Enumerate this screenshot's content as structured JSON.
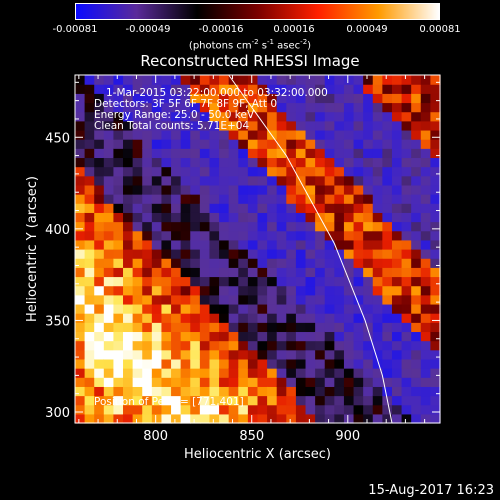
{
  "colorbar": {
    "ticks": [
      "-0.00081",
      "-0.00049",
      "-0.00016",
      "0.00016",
      "0.00049",
      "0.00081"
    ],
    "units_parts": [
      "(photons cm",
      "-2",
      " s",
      "-1",
      " asec",
      "-2",
      ")"
    ],
    "colors": [
      "#0a0aff",
      "#5a2a9a",
      "#000000",
      "#7a0000",
      "#ff2000",
      "#ff9a00",
      "#ffffff"
    ]
  },
  "title": "Reconstructed RHESSI Image",
  "info": {
    "line1": "1-Mar-2015 03:22:00.000 to 03:32:00.000",
    "line2": "Detectors: 3F 5F 6F 7F 8F 9F, Att 0",
    "line3": "Energy Range: 25.0 - 50.0 keV",
    "line4": "Clean    Total counts: 5.71E+04",
    "peak": "Position of Peak = [771,401]"
  },
  "footer": {
    "timestamp": "15-Aug-2017 16:23"
  },
  "chart_data": {
    "type": "heatmap",
    "title": "Reconstructed RHESSI Image",
    "xlabel": "Heliocentric X (arcsec)",
    "ylabel": "Heliocentric Y (arcsec)",
    "xlim": [
      758,
      948
    ],
    "ylim": [
      294,
      484
    ],
    "x_ticks": [
      "800",
      "850",
      "900"
    ],
    "x_tick_values": [
      800,
      850,
      900
    ],
    "y_ticks": [
      "300",
      "350",
      "400",
      "450"
    ],
    "y_tick_values": [
      300,
      350,
      400,
      450
    ],
    "colorbar_range": [
      -0.00081,
      0.00081
    ],
    "peak_position": [
      771,
      401
    ],
    "limb_curve": [
      [
        838,
        484
      ],
      [
        868,
        440
      ],
      [
        893,
        392
      ],
      [
        909,
        350
      ],
      [
        918,
        320
      ],
      [
        923,
        294
      ]
    ],
    "bands": [
      {
        "kind": "bright-emission",
        "along": "lower-left diagonal",
        "intensity": 0.00081
      },
      {
        "kind": "negative",
        "along": "middle diagonal",
        "intensity": -0.00049
      },
      {
        "kind": "positive-sidelobe",
        "along": "middle diagonal",
        "intensity": 0.00049
      },
      {
        "kind": "negative",
        "along": "upper diagonal",
        "intensity": -0.00049
      },
      {
        "kind": "positive-sidelobe",
        "along": "upper-right diagonal",
        "intensity": 0.00049
      }
    ]
  }
}
